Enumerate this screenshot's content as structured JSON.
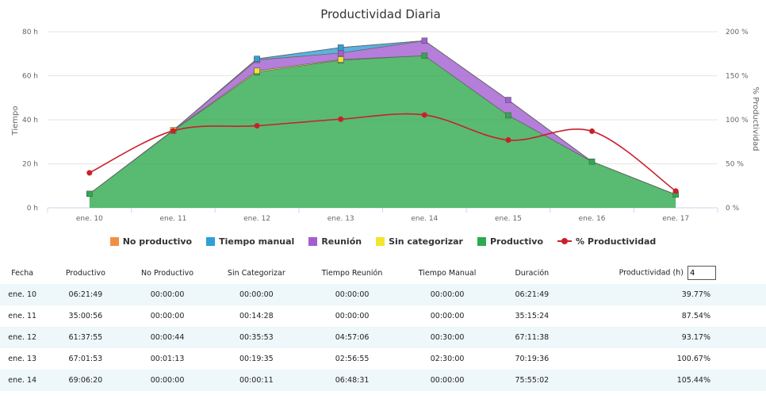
{
  "chart_data": {
    "type": "area",
    "title": "Productividad Diaria",
    "categories": [
      "ene. 10",
      "ene. 11",
      "ene. 12",
      "ene. 13",
      "ene. 14",
      "ene. 15",
      "ene. 16",
      "ene. 17"
    ],
    "ylabel": "Tiempo",
    "y2label": "% Productividad",
    "ylim": [
      0,
      80
    ],
    "y2lim": [
      0,
      200
    ],
    "yticks": [
      "0 h",
      "20 h",
      "40 h",
      "60 h",
      "80 h"
    ],
    "y2ticks": [
      "0 %",
      "50 %",
      "100 %",
      "150 %",
      "200 %"
    ],
    "grid": true,
    "legend_position": "bottom",
    "stacked": true,
    "series": [
      {
        "name": "No productivo",
        "color": "#f28f43",
        "type": "area",
        "values": [
          0,
          0,
          0.01,
          0.02,
          0,
          0,
          0,
          0
        ]
      },
      {
        "name": "Tiempo manual",
        "color": "#2f9fd8",
        "type": "area",
        "values": [
          0,
          0,
          0.5,
          2.5,
          0,
          0,
          0,
          0
        ]
      },
      {
        "name": "Reunión",
        "color": "#a35ed1",
        "type": "area",
        "values": [
          0,
          0,
          4.95,
          2.95,
          6.81,
          7,
          0,
          0
        ]
      },
      {
        "name": "Sin categorizar",
        "color": "#f2e530",
        "type": "area",
        "values": [
          0,
          0.24,
          0.6,
          0.33,
          0,
          0,
          0,
          0
        ]
      },
      {
        "name": "Productivo",
        "color": "#2eaa4e",
        "type": "area",
        "values": [
          6.36,
          35.02,
          61.63,
          67.03,
          69.11,
          42,
          21,
          6
        ]
      },
      {
        "name": "% Productividad",
        "color": "#c9202a",
        "type": "spline",
        "axis": "right",
        "values": [
          39.77,
          87.54,
          93.17,
          100.67,
          105.44,
          77,
          87,
          19
        ]
      }
    ]
  },
  "legend": [
    {
      "label": "No productivo",
      "color": "#f28f43",
      "kind": "box"
    },
    {
      "label": "Tiempo manual",
      "color": "#2f9fd8",
      "kind": "box"
    },
    {
      "label": "Reunión",
      "color": "#a35ed1",
      "kind": "box"
    },
    {
      "label": "Sin categorizar",
      "color": "#f2e530",
      "kind": "box"
    },
    {
      "label": "Productivo",
      "color": "#2eaa4e",
      "kind": "box"
    },
    {
      "label": "% Productividad",
      "color": "#c9202a",
      "kind": "line"
    }
  ],
  "table": {
    "headers": [
      "Fecha",
      "Productivo",
      "No Productivo",
      "Sin Categorizar",
      "Tiempo Reunión",
      "Tiempo Manual",
      "Duración",
      "Productividad (h)"
    ],
    "productivity_input_value": "4",
    "rows": [
      [
        "ene. 10",
        "06:21:49",
        "00:00:00",
        "00:00:00",
        "00:00:00",
        "00:00:00",
        "06:21:49",
        "39.77%"
      ],
      [
        "ene. 11",
        "35:00:56",
        "00:00:00",
        "00:14:28",
        "00:00:00",
        "00:00:00",
        "35:15:24",
        "87.54%"
      ],
      [
        "ene. 12",
        "61:37:55",
        "00:00:44",
        "00:35:53",
        "04:57:06",
        "00:30:00",
        "67:11:38",
        "93.17%"
      ],
      [
        "ene. 13",
        "67:01:53",
        "00:01:13",
        "00:19:35",
        "02:56:55",
        "02:30:00",
        "70:19:36",
        "100.67%"
      ],
      [
        "ene. 14",
        "69:06:20",
        "00:00:00",
        "00:00:11",
        "06:48:31",
        "00:00:00",
        "75:55:02",
        "105.44%"
      ]
    ]
  }
}
